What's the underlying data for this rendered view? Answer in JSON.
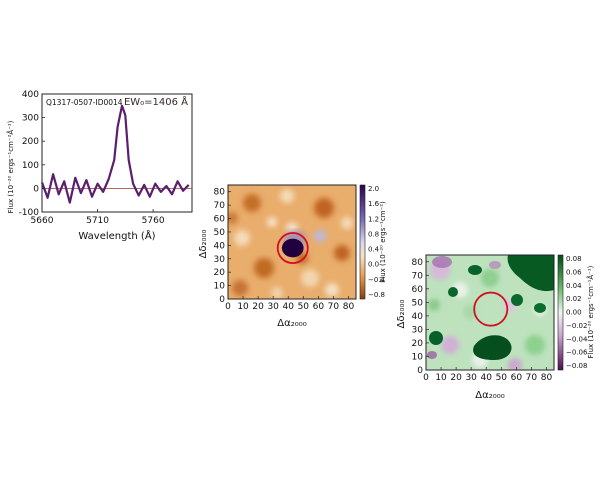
{
  "colors": {
    "spectrum_line": "#5a1e6e",
    "zero_line": "#b05050",
    "aperture_circle": "#d01020",
    "orange_map_bg": "#e9ad6c",
    "green_map_bg": "#bde2bd"
  },
  "chart_data": [
    {
      "type": "line",
      "id": "spectrum",
      "label": "Q1317-0507-ID0014",
      "annotation": "EW₀=1406 Å",
      "xlabel": "Wavelength (Å)",
      "ylabel": "Flux (10⁻²⁰ ergs⁻¹cm⁻²Å⁻¹)",
      "xlim": [
        5660,
        5795
      ],
      "ylim": [
        -100,
        400
      ],
      "xticks": [
        "5660",
        "5710",
        "5760"
      ],
      "xtick_values": [
        5660,
        5710,
        5760
      ],
      "yticks": [
        "-100",
        "0",
        "100",
        "200",
        "300",
        "400"
      ],
      "ytick_values": [
        -100,
        0,
        100,
        200,
        300,
        400
      ],
      "zero_line": 0,
      "x": [
        5660,
        5665,
        5670,
        5675,
        5680,
        5685,
        5690,
        5695,
        5700,
        5705,
        5710,
        5715,
        5720,
        5725,
        5728,
        5732,
        5735,
        5738,
        5742,
        5747,
        5752,
        5757,
        5762,
        5767,
        5772,
        5777,
        5782,
        5787,
        5792
      ],
      "y": [
        25,
        -40,
        60,
        -25,
        30,
        -60,
        45,
        -20,
        35,
        -35,
        20,
        -15,
        40,
        120,
        260,
        350,
        310,
        120,
        20,
        -30,
        15,
        -35,
        20,
        -15,
        10,
        -25,
        30,
        -10,
        15
      ]
    },
    {
      "type": "heatmap",
      "id": "narrowband-map",
      "xlabel": "Δα₂₀₀₀",
      "ylabel": "Δδ₂₀₀₀",
      "colorbar_label": "Flux (10⁻²⁰ ergs⁻¹cm⁻²)",
      "xlim": [
        0,
        85
      ],
      "ylim": [
        0,
        85
      ],
      "xticks": [
        "0",
        "10",
        "20",
        "30",
        "40",
        "50",
        "60",
        "70",
        "80"
      ],
      "yticks": [
        "0",
        "10",
        "20",
        "30",
        "40",
        "50",
        "60",
        "70",
        "80"
      ],
      "colorbar_ticks": [
        "2.0",
        "1.6",
        "1.2",
        "0.8",
        "0.4",
        "0.0",
        "−0.4",
        "−0.8"
      ],
      "colorbar_range": [
        -0.8,
        2.0
      ],
      "aperture": {
        "x": 43,
        "y": 38,
        "r": 10
      }
    },
    {
      "type": "heatmap",
      "id": "continuum-map",
      "xlabel": "Δα₂₀₀₀",
      "ylabel": "Δδ₂₀₀₀",
      "colorbar_label": "Flux (10⁻²⁰ ergs⁻¹cm⁻¹Å⁻¹)",
      "xlim": [
        0,
        85
      ],
      "ylim": [
        0,
        85
      ],
      "xticks": [
        "0",
        "10",
        "20",
        "30",
        "40",
        "50",
        "60",
        "70",
        "80"
      ],
      "yticks": [
        "0",
        "10",
        "20",
        "30",
        "40",
        "50",
        "60",
        "70",
        "80"
      ],
      "colorbar_ticks": [
        "0.08",
        "0.06",
        "0.04",
        "0.02",
        "0.00",
        "−0.02",
        "−0.04",
        "−0.06",
        "−0.08"
      ],
      "colorbar_range": [
        -0.08,
        0.08
      ],
      "aperture": {
        "x": 43,
        "y": 45,
        "r": 11
      }
    }
  ]
}
